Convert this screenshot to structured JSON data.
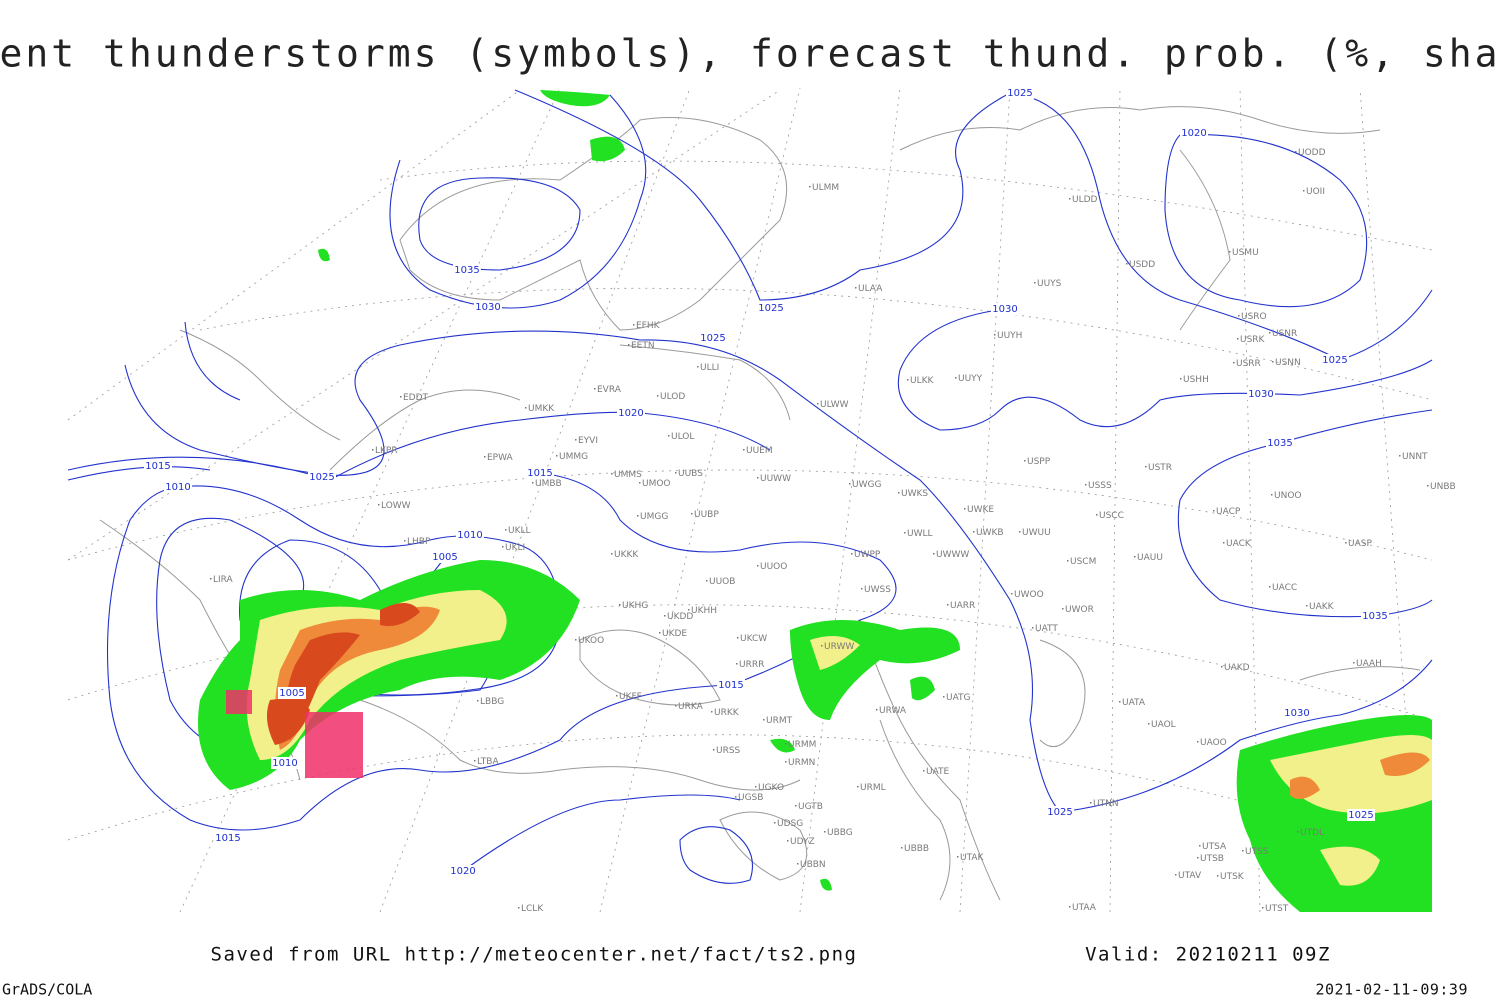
{
  "header": {
    "title": "Current thunderstorms (symbols), forecast thund. prob. (%, shaded)"
  },
  "map": {
    "stations": [
      "ULMM",
      "ULDD",
      "UOII",
      "UODD",
      "USMU",
      "USDD",
      "ULAA",
      "UUYS",
      "USRO",
      "USRK",
      "USNR",
      "USRR",
      "USNN",
      "EFHK",
      "EETN",
      "ULLI",
      "UUYH",
      "ULKK",
      "UUYY",
      "USHH",
      "EVRA",
      "ULOD",
      "EDDT",
      "UMKK",
      "ULWW",
      "EYVI",
      "ULOL",
      "UUEM",
      "LKPR",
      "EPWA",
      "UMMG",
      "UMMS",
      "UUBS",
      "UUWW",
      "UWGG",
      "UWKS",
      "USPP",
      "USTR",
      "UNNT",
      "UNBB",
      "UMBB",
      "UMOO",
      "USSS",
      "UNOO",
      "UWKE",
      "LOWW",
      "UMGG",
      "UUBP",
      "UWKB",
      "UWUU",
      "USCC",
      "UACP",
      "UWLL",
      "UKLI",
      "UKLL",
      "LHBP",
      "UKKK",
      "UWPP",
      "UWWW",
      "USCM",
      "UAUU",
      "UACK",
      "UASP",
      "LIRA",
      "UUOO",
      "UUOB",
      "UWSS",
      "UACC",
      "UKHG",
      "UKDD",
      "UKHH",
      "UARR",
      "UWOO",
      "UWOR",
      "UAKK",
      "UKOO",
      "UKDE",
      "UKCW",
      "URWW",
      "UATT",
      "URRR",
      "UAKD",
      "UAAH",
      "UKFF",
      "URKA",
      "URKK",
      "URWA",
      "UATG",
      "UATA",
      "UAOL",
      "UAOO",
      "LBBG",
      "URMT",
      "URSS",
      "URMM",
      "URMN",
      "UATE",
      "LTBA",
      "UGKO",
      "URML",
      "UGSB",
      "UGTB",
      "UDSG",
      "UBBG",
      "UBBB",
      "UTNN",
      "UDYZ",
      "UTAK",
      "UBBN",
      "UTSA",
      "UTSB",
      "UTAV",
      "UTSS",
      "UTDL",
      "UTSK",
      "UTST",
      "UTAA",
      "LCLK"
    ],
    "isobar_labels": [
      1025,
      1020,
      1035,
      1030,
      1025,
      1030,
      1025,
      1025,
      1030,
      1020,
      1035,
      1015,
      1025,
      1015,
      1010,
      1010,
      1005,
      1035,
      1015,
      1005,
      1030,
      1010,
      1025,
      1025,
      1015,
      1020
    ]
  },
  "footer": {
    "source": "Saved from URL  http://meteocenter.net/fact/ts2.png",
    "valid": "Valid: 20210211 09Z",
    "software": "GrADS/COLA",
    "timestamp": "2021-02-11-09:39"
  }
}
